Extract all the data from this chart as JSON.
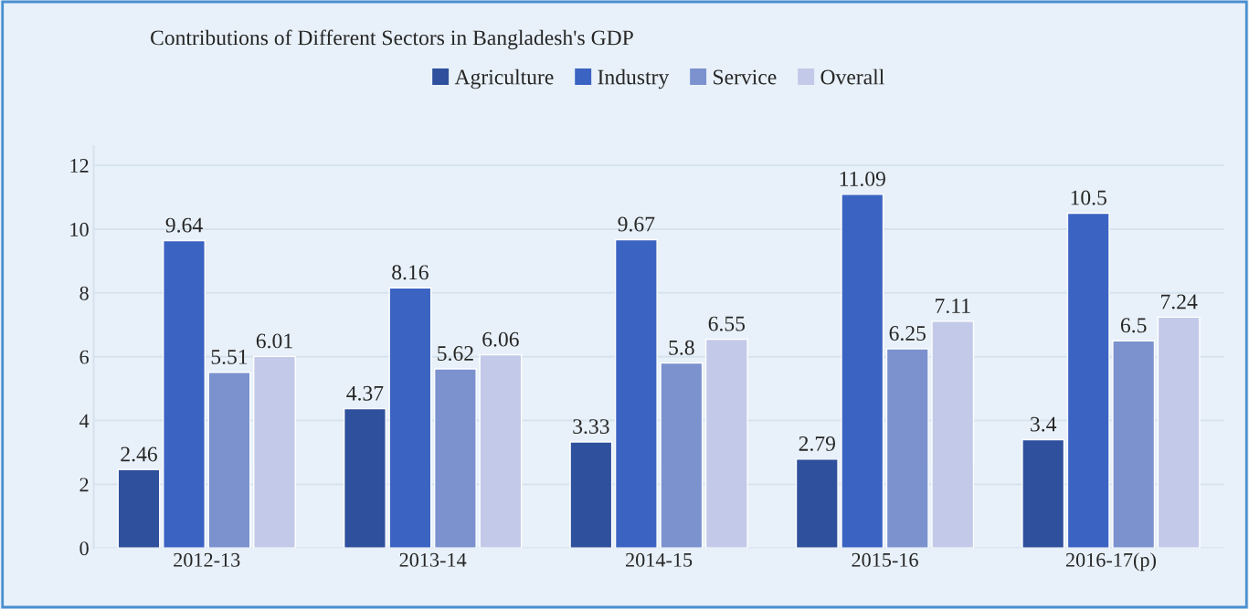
{
  "chart_data": {
    "type": "bar",
    "title": "Contributions of Different Sectors in Bangladesh's GDP",
    "categories": [
      "2012-13",
      "2013-14",
      "2014-15",
      "2015-16",
      "2016-17(p)"
    ],
    "series": [
      {
        "name": "Agriculture",
        "color": "#2f509c",
        "values": [
          2.46,
          4.37,
          3.33,
          2.79,
          3.4
        ]
      },
      {
        "name": "Industry",
        "color": "#3b63c2",
        "values": [
          9.64,
          8.16,
          9.67,
          11.09,
          10.5
        ]
      },
      {
        "name": "Service",
        "color": "#7b92cf",
        "values": [
          5.51,
          5.62,
          5.8,
          6.25,
          6.5
        ]
      },
      {
        "name": "Overall",
        "color": "#c3c9e8",
        "values": [
          6.01,
          6.06,
          6.55,
          7.11,
          7.24
        ]
      }
    ],
    "ylim": [
      0,
      12.6
    ],
    "yticks": [
      0,
      2,
      4,
      6,
      8,
      10,
      12
    ],
    "grid": "y",
    "legend": "top",
    "data_labels": true
  }
}
